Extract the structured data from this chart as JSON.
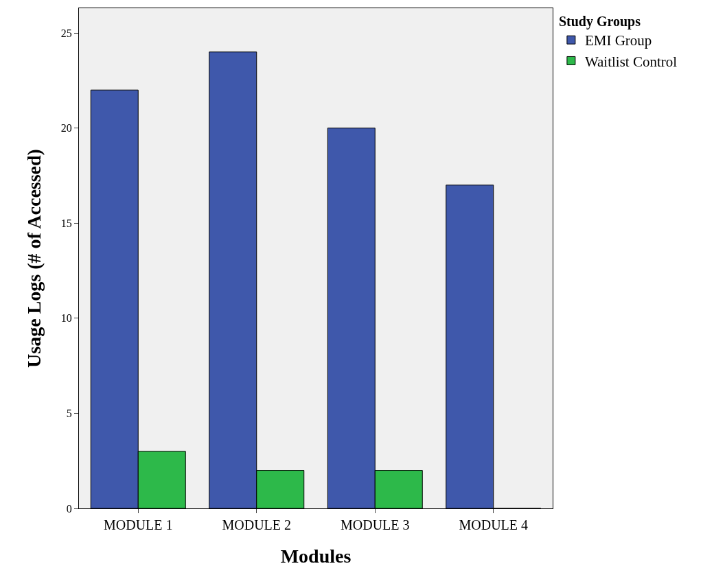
{
  "chart_data": {
    "type": "bar",
    "xlabel": "Modules",
    "ylabel": "Usage Logs (# of Accessed)",
    "legend_title": "Study Groups",
    "categories": [
      "MODULE 1",
      "MODULE 2",
      "MODULE 3",
      "MODULE 4"
    ],
    "series": [
      {
        "name": "EMI Group",
        "color": "#3f58ab",
        "values": [
          22,
          24,
          20,
          17
        ]
      },
      {
        "name": "Waitlist Control",
        "color": "#2db94a",
        "values": [
          3,
          2,
          2,
          0
        ]
      }
    ],
    "ylim": [
      0,
      26.3
    ],
    "yticks": [
      0,
      5,
      10,
      15,
      20,
      25
    ],
    "grid": false,
    "legend": "top right"
  }
}
